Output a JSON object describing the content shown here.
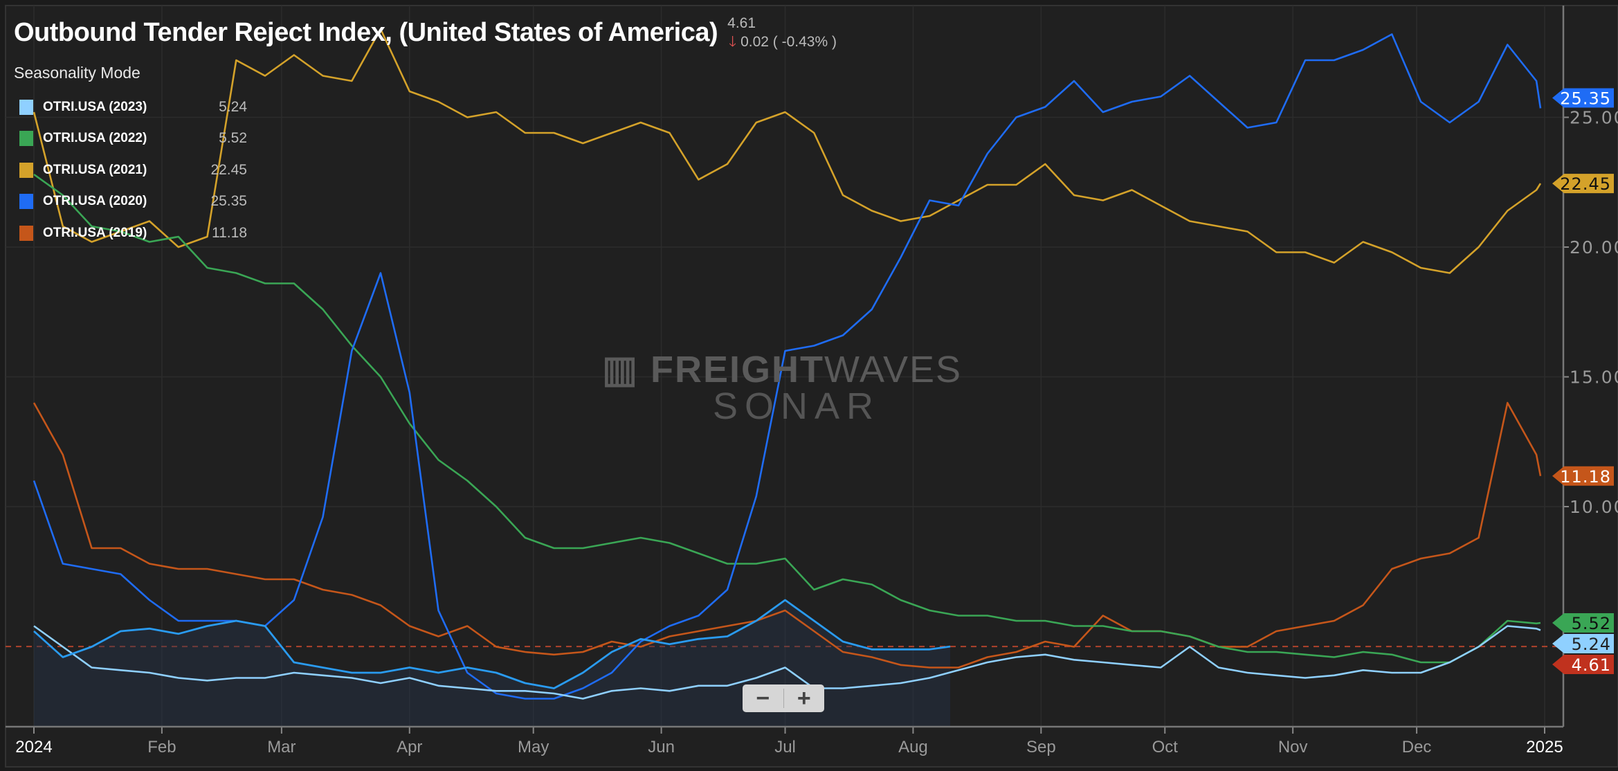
{
  "header": {
    "title": "Outbound Tender Reject Index, (United States of America)",
    "last_value": "4.61",
    "change": "0.02 ( -0.43% )",
    "change_direction": "down",
    "mode_label": "Seasonality Mode"
  },
  "watermark": {
    "brand_bold": "FREIGHT",
    "brand_thin": "WAVES",
    "product": "SONAR"
  },
  "zoom_controls": {
    "minus": "−",
    "plus": "+"
  },
  "chart_data": {
    "type": "line",
    "title": "Outbound Tender Reject Index, (United States of America)",
    "x": [
      "2024-01-01",
      "2024-01-08",
      "2024-01-15",
      "2024-01-22",
      "2024-01-29",
      "2024-02-05",
      "2024-02-12",
      "2024-02-19",
      "2024-02-26",
      "2024-03-04",
      "2024-03-11",
      "2024-03-18",
      "2024-03-25",
      "2024-04-01",
      "2024-04-08",
      "2024-04-15",
      "2024-04-22",
      "2024-04-29",
      "2024-05-06",
      "2024-05-13",
      "2024-05-20",
      "2024-05-27",
      "2024-06-03",
      "2024-06-10",
      "2024-06-17",
      "2024-06-24",
      "2024-07-01",
      "2024-07-08",
      "2024-07-15",
      "2024-07-22",
      "2024-07-29",
      "2024-08-05",
      "2024-08-12",
      "2024-08-19",
      "2024-08-26",
      "2024-09-02",
      "2024-09-09",
      "2024-09-16",
      "2024-09-23",
      "2024-09-30",
      "2024-10-07",
      "2024-10-14",
      "2024-10-21",
      "2024-10-28",
      "2024-11-04",
      "2024-11-11",
      "2024-11-18",
      "2024-11-25",
      "2024-12-02",
      "2024-12-09",
      "2024-12-16",
      "2024-12-23",
      "2024-12-30",
      "2024-12-31"
    ],
    "xlim": [
      "2024-01-01",
      "2025-01-06"
    ],
    "x_ticks": [
      {
        "date": "2024-01-01",
        "label": "2024",
        "major": true
      },
      {
        "date": "2024-02-01",
        "label": "Feb"
      },
      {
        "date": "2024-03-01",
        "label": "Mar"
      },
      {
        "date": "2024-04-01",
        "label": "Apr"
      },
      {
        "date": "2024-05-01",
        "label": "May"
      },
      {
        "date": "2024-06-01",
        "label": "Jun"
      },
      {
        "date": "2024-07-01",
        "label": "Jul"
      },
      {
        "date": "2024-08-01",
        "label": "Aug"
      },
      {
        "date": "2024-09-01",
        "label": "Sep"
      },
      {
        "date": "2024-10-01",
        "label": "Oct"
      },
      {
        "date": "2024-11-01",
        "label": "Nov"
      },
      {
        "date": "2024-12-01",
        "label": "Dec"
      },
      {
        "date": "2025-01-01",
        "label": "2025",
        "major": true
      }
    ],
    "ylim": [
      1.5,
      29.5
    ],
    "y_ticks": [
      {
        "value": 10,
        "label": "10.00"
      },
      {
        "value": 15,
        "label": "15.00"
      },
      {
        "value": 20,
        "label": "20.00"
      },
      {
        "value": 25,
        "label": "25.00"
      }
    ],
    "y_axis_side": "right",
    "grid": true,
    "legend_position": "top-left",
    "series": [
      {
        "name": "OTRI.USA (2023)",
        "last": "5.24",
        "color": "#8fd0ff",
        "values": [
          5.4,
          4.6,
          3.8,
          3.7,
          3.6,
          3.4,
          3.3,
          3.4,
          3.4,
          3.6,
          3.5,
          3.4,
          3.2,
          3.4,
          3.1,
          3.0,
          2.9,
          2.9,
          2.8,
          2.6,
          2.9,
          3.0,
          2.9,
          3.1,
          3.1,
          3.4,
          3.8,
          3.0,
          3.0,
          3.1,
          3.2,
          3.4,
          3.7,
          4.0,
          4.2,
          4.3,
          4.1,
          4.0,
          3.9,
          3.8,
          4.6,
          3.8,
          3.6,
          3.5,
          3.4,
          3.5,
          3.7,
          3.6,
          3.6,
          4.0,
          4.6,
          5.4,
          5.3,
          5.24
        ]
      },
      {
        "name": "OTRI.USA (2022)",
        "last": "5.52",
        "color": "#3aa655",
        "values": [
          22.8,
          22.0,
          20.8,
          20.6,
          20.2,
          20.4,
          19.2,
          19.0,
          18.6,
          18.6,
          17.6,
          16.2,
          15.0,
          13.2,
          11.8,
          11.0,
          10.0,
          8.8,
          8.4,
          8.4,
          8.6,
          8.8,
          8.6,
          8.2,
          7.8,
          7.8,
          8.0,
          6.8,
          7.2,
          7.0,
          6.4,
          6.0,
          5.8,
          5.8,
          5.6,
          5.6,
          5.4,
          5.4,
          5.2,
          5.2,
          5.0,
          4.6,
          4.4,
          4.4,
          4.3,
          4.2,
          4.4,
          4.3,
          4.0,
          4.0,
          4.6,
          5.6,
          5.5,
          5.52
        ]
      },
      {
        "name": "OTRI.USA (2021)",
        "last": "22.45",
        "color": "#d4a22a",
        "values": [
          25.2,
          20.8,
          20.2,
          20.6,
          21.0,
          20.0,
          20.4,
          27.2,
          26.6,
          27.4,
          26.6,
          26.4,
          28.4,
          26.0,
          25.6,
          25.0,
          25.2,
          24.4,
          24.4,
          24.0,
          24.4,
          24.8,
          24.4,
          22.6,
          23.2,
          24.8,
          25.2,
          24.4,
          22.0,
          21.4,
          21.0,
          21.2,
          21.8,
          22.4,
          22.4,
          23.2,
          22.0,
          21.8,
          22.2,
          21.6,
          21.0,
          20.8,
          20.6,
          19.8,
          19.8,
          19.4,
          20.2,
          19.8,
          19.2,
          19.0,
          20.0,
          21.4,
          22.2,
          22.45
        ]
      },
      {
        "name": "OTRI.USA (2020)",
        "last": "25.35",
        "color": "#1f6cf5",
        "values": [
          11.0,
          7.8,
          7.6,
          7.4,
          6.4,
          5.6,
          5.6,
          5.6,
          5.4,
          6.4,
          9.6,
          16.0,
          19.0,
          14.4,
          6.0,
          3.6,
          2.8,
          2.6,
          2.6,
          3.0,
          3.6,
          4.8,
          5.4,
          5.8,
          6.8,
          10.4,
          16.0,
          16.2,
          16.6,
          17.6,
          19.6,
          21.8,
          21.6,
          23.6,
          25.0,
          25.4,
          26.4,
          25.2,
          25.6,
          25.8,
          26.6,
          25.6,
          24.6,
          24.8,
          27.2,
          27.2,
          27.6,
          28.2,
          25.6,
          24.8,
          25.6,
          27.8,
          26.4,
          25.35
        ]
      },
      {
        "name": "OTRI.USA (2019)",
        "last": "11.18",
        "color": "#c5561a",
        "values": [
          14.0,
          12.0,
          8.4,
          8.4,
          7.8,
          7.6,
          7.6,
          7.4,
          7.2,
          7.2,
          6.8,
          6.6,
          6.2,
          5.4,
          5.0,
          5.4,
          4.6,
          4.4,
          4.3,
          4.4,
          4.8,
          4.6,
          5.0,
          5.2,
          5.4,
          5.6,
          6.0,
          5.2,
          4.4,
          4.2,
          3.9,
          3.8,
          3.8,
          4.2,
          4.4,
          4.8,
          4.6,
          5.8,
          5.2,
          5.2,
          5.0,
          4.6,
          4.6,
          5.2,
          5.4,
          5.6,
          6.2,
          7.6,
          8.0,
          8.2,
          8.8,
          14.0,
          12.0,
          11.18
        ]
      }
    ],
    "current": {
      "last": "4.61",
      "color": "#2a9bf0",
      "tag_color": "#c0321e",
      "x": [
        "2024-01-01",
        "2024-01-08",
        "2024-01-15",
        "2024-01-22",
        "2024-01-29",
        "2024-02-05",
        "2024-02-12",
        "2024-02-19",
        "2024-02-26",
        "2024-03-04",
        "2024-03-11",
        "2024-03-18",
        "2024-03-25",
        "2024-04-01",
        "2024-04-08",
        "2024-04-15",
        "2024-04-22",
        "2024-04-29",
        "2024-05-06",
        "2024-05-13",
        "2024-05-20",
        "2024-05-27",
        "2024-06-03",
        "2024-06-10",
        "2024-06-17",
        "2024-06-24",
        "2024-07-01",
        "2024-07-08",
        "2024-07-15",
        "2024-07-22",
        "2024-07-29",
        "2024-08-05",
        "2024-08-10"
      ],
      "values": [
        5.2,
        4.2,
        4.6,
        5.2,
        5.3,
        5.1,
        5.4,
        5.6,
        5.4,
        4.0,
        3.8,
        3.6,
        3.6,
        3.8,
        3.6,
        3.8,
        3.6,
        3.2,
        3.0,
        3.6,
        4.4,
        4.9,
        4.7,
        4.9,
        5.0,
        5.6,
        6.4,
        5.6,
        4.8,
        4.5,
        4.5,
        4.5,
        4.61
      ]
    }
  }
}
